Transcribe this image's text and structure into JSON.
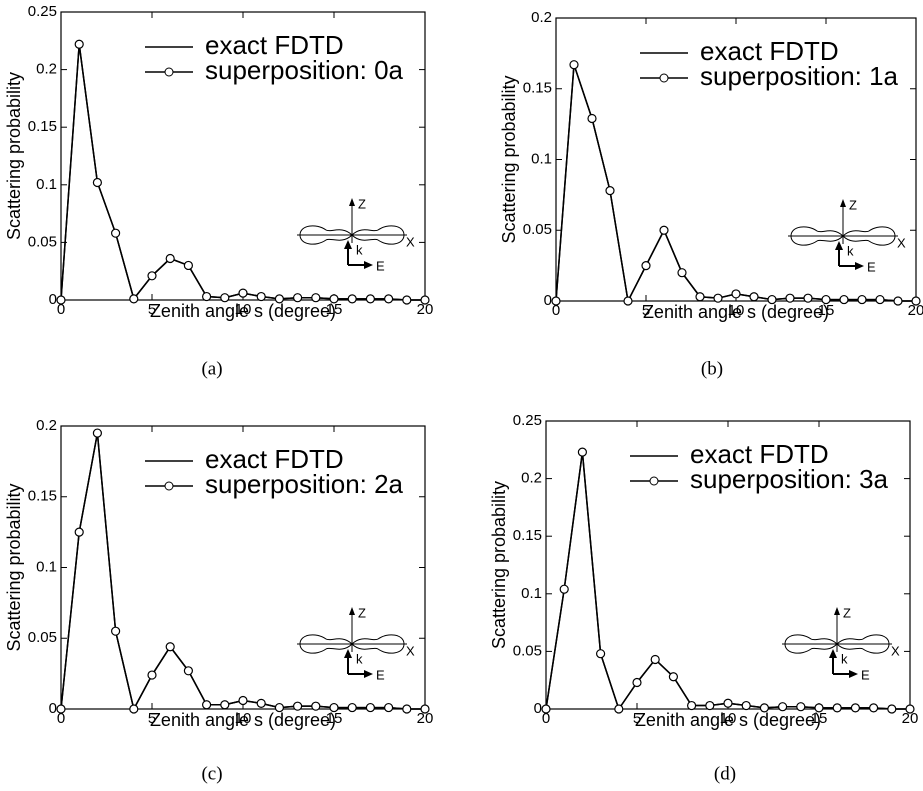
{
  "chart_data": [
    {
      "type": "line",
      "caption": "(a)",
      "xlabel": "Zenith angle s (degree)",
      "ylabel": "Scattering probability",
      "x": [
        0,
        1,
        2,
        3,
        4,
        5,
        6,
        7,
        8,
        9,
        10,
        11,
        12,
        13,
        14,
        15,
        16,
        17,
        18,
        19,
        20
      ],
      "series": [
        {
          "name": "exact FDTD",
          "color": "#000000",
          "marker": "none",
          "values": [
            0,
            0.222,
            0.102,
            0.058,
            0.001,
            0.021,
            0.036,
            0.03,
            0.003,
            0.002,
            0.006,
            0.003,
            0.001,
            0.002,
            0.002,
            0.001,
            0.001,
            0.001,
            0.001,
            0,
            0
          ]
        },
        {
          "name": "superposition: 0a",
          "color": "#000000",
          "marker": "o",
          "values": [
            0,
            0.222,
            0.102,
            0.058,
            0.001,
            0.021,
            0.036,
            0.03,
            0.003,
            0.002,
            0.006,
            0.003,
            0.001,
            0.002,
            0.002,
            0.001,
            0.001,
            0.001,
            0.001,
            0,
            0
          ]
        }
      ],
      "xlim": [
        0,
        20
      ],
      "xticks": [
        0,
        5,
        10,
        15,
        20
      ],
      "ylim": [
        0,
        0.25
      ],
      "yticks": [
        0,
        0.05,
        0.1,
        0.15,
        0.2,
        0.25
      ],
      "legend": "upper right",
      "inset_labels": {
        "z": "Z",
        "x": "X",
        "k": "k",
        "e": "E"
      }
    },
    {
      "type": "line",
      "caption": "(b)",
      "xlabel": "Zenith angle s (degree)",
      "ylabel": "Scattering probability",
      "x": [
        0,
        1,
        2,
        3,
        4,
        5,
        6,
        7,
        8,
        9,
        10,
        11,
        12,
        13,
        14,
        15,
        16,
        17,
        18,
        19,
        20
      ],
      "series": [
        {
          "name": "exact FDTD",
          "color": "#000000",
          "marker": "none",
          "values": [
            0,
            0.167,
            0.129,
            0.078,
            0,
            0.025,
            0.05,
            0.02,
            0.003,
            0.002,
            0.005,
            0.003,
            0.001,
            0.002,
            0.002,
            0.001,
            0.001,
            0.001,
            0.001,
            0,
            0
          ]
        },
        {
          "name": "superposition: 1a",
          "color": "#000000",
          "marker": "o",
          "values": [
            0,
            0.167,
            0.129,
            0.078,
            0,
            0.025,
            0.05,
            0.02,
            0.003,
            0.002,
            0.005,
            0.003,
            0.001,
            0.002,
            0.002,
            0.001,
            0.001,
            0.001,
            0.001,
            0,
            0
          ]
        }
      ],
      "xlim": [
        0,
        20
      ],
      "xticks": [
        0,
        5,
        10,
        15,
        20
      ],
      "ylim": [
        0,
        0.2
      ],
      "yticks": [
        0,
        0.05,
        0.1,
        0.15,
        0.2
      ],
      "legend": "upper right",
      "inset_labels": {
        "z": "Z",
        "x": "X",
        "k": "k",
        "e": "E"
      }
    },
    {
      "type": "line",
      "caption": "(c)",
      "xlabel": "Zenith angle s (degree)",
      "ylabel": "Scattering probability",
      "x": [
        0,
        1,
        2,
        3,
        4,
        5,
        6,
        7,
        8,
        9,
        10,
        11,
        12,
        13,
        14,
        15,
        16,
        17,
        18,
        19,
        20
      ],
      "series": [
        {
          "name": "exact FDTD",
          "color": "#000000",
          "marker": "none",
          "values": [
            0,
            0.125,
            0.195,
            0.055,
            0,
            0.024,
            0.044,
            0.027,
            0.003,
            0.003,
            0.006,
            0.004,
            0.001,
            0.002,
            0.002,
            0.001,
            0.001,
            0.001,
            0.001,
            0,
            0
          ]
        },
        {
          "name": "superposition: 2a",
          "color": "#000000",
          "marker": "o",
          "values": [
            0,
            0.125,
            0.195,
            0.055,
            0,
            0.024,
            0.044,
            0.027,
            0.003,
            0.003,
            0.006,
            0.004,
            0.001,
            0.002,
            0.002,
            0.001,
            0.001,
            0.001,
            0.001,
            0,
            0
          ]
        }
      ],
      "xlim": [
        0,
        20
      ],
      "xticks": [
        0,
        5,
        10,
        15,
        20
      ],
      "ylim": [
        0,
        0.2
      ],
      "yticks": [
        0,
        0.05,
        0.1,
        0.15,
        0.2
      ],
      "legend": "upper right",
      "inset_labels": {
        "z": "Z",
        "x": "X",
        "k": "k",
        "e": "E"
      }
    },
    {
      "type": "line",
      "caption": "(d)",
      "xlabel": "Zenith angle s (degree)",
      "ylabel": "Scattering probability",
      "x": [
        0,
        1,
        2,
        3,
        4,
        5,
        6,
        7,
        8,
        9,
        10,
        11,
        12,
        13,
        14,
        15,
        16,
        17,
        18,
        19,
        20
      ],
      "series": [
        {
          "name": "exact FDTD",
          "color": "#000000",
          "marker": "none",
          "values": [
            0,
            0.104,
            0.223,
            0.048,
            0,
            0.023,
            0.043,
            0.028,
            0.003,
            0.003,
            0.005,
            0.003,
            0.001,
            0.002,
            0.002,
            0.001,
            0.001,
            0.001,
            0.001,
            0,
            0
          ]
        },
        {
          "name": "superposition: 3a",
          "color": "#000000",
          "marker": "o",
          "values": [
            0,
            0.104,
            0.223,
            0.048,
            0,
            0.023,
            0.043,
            0.028,
            0.003,
            0.003,
            0.005,
            0.003,
            0.001,
            0.002,
            0.002,
            0.001,
            0.001,
            0.001,
            0.001,
            0,
            0
          ]
        }
      ],
      "xlim": [
        0,
        20
      ],
      "xticks": [
        0,
        5,
        10,
        15,
        20
      ],
      "ylim": [
        0,
        0.25
      ],
      "yticks": [
        0,
        0.05,
        0.1,
        0.15,
        0.2,
        0.25
      ],
      "legend": "upper right",
      "inset_labels": {
        "z": "Z",
        "x": "X",
        "k": "k",
        "e": "E"
      }
    }
  ]
}
